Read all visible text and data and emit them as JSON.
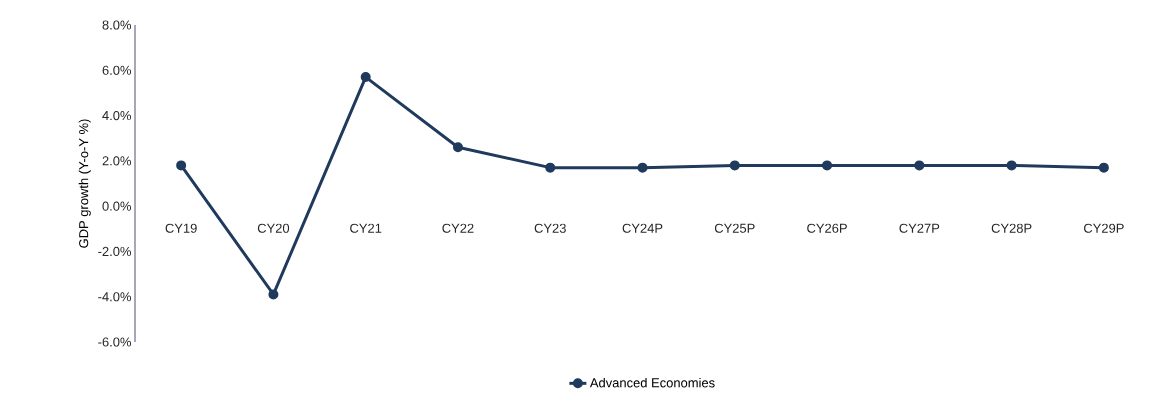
{
  "chart_data": {
    "type": "line",
    "ylabel": "GDP growth (Y-o-Y %)",
    "categories": [
      "CY19",
      "CY20",
      "CY21",
      "CY22",
      "CY23",
      "CY24P",
      "CY25P",
      "CY26P",
      "CY27P",
      "CY28P",
      "CY29P"
    ],
    "series": [
      {
        "name": "Advanced Economies",
        "color": "#1f3a5c",
        "values": [
          1.8,
          -3.9,
          5.7,
          2.6,
          1.7,
          1.7,
          1.8,
          1.8,
          1.8,
          1.8,
          1.7
        ]
      }
    ],
    "ylim": [
      -6,
      8
    ],
    "yticks": [
      {
        "value": -6,
        "label": "-6.0%"
      },
      {
        "value": -4,
        "label": "-4.0%"
      },
      {
        "value": -2,
        "label": "-2.0%"
      },
      {
        "value": 0,
        "label": "0.0%"
      },
      {
        "value": 2,
        "label": "2.0%"
      },
      {
        "value": 4,
        "label": "4.0%"
      },
      {
        "value": 6,
        "label": "6.0%"
      },
      {
        "value": 8,
        "label": "8.0%"
      }
    ],
    "grid": false,
    "legend": "bottom",
    "marker": "circle",
    "line_style": "solid"
  }
}
